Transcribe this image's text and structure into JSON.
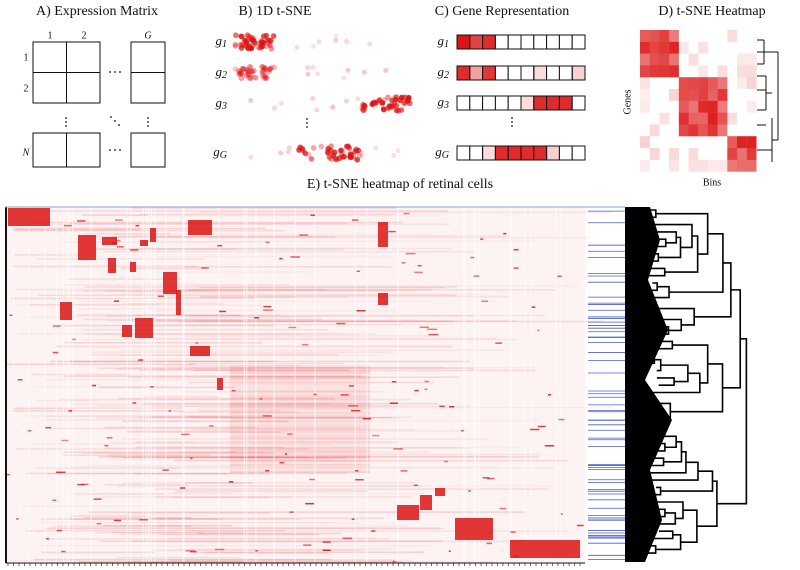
{
  "panel_a": {
    "title": "A) Expression Matrix",
    "col_labels": [
      "1",
      "2",
      "G"
    ],
    "row_labels": [
      "1",
      "2",
      "N"
    ]
  },
  "panel_b": {
    "title": "B) 1D t-SNE",
    "rows": [
      {
        "base": "g",
        "sub": "1"
      },
      {
        "base": "g",
        "sub": "2"
      },
      {
        "base": "g",
        "sub": "3"
      },
      {
        "base": "g",
        "sub": "G"
      }
    ]
  },
  "panel_c": {
    "title": "C) Gene Representation",
    "rows": [
      {
        "base": "g",
        "sub": "1"
      },
      {
        "base": "g",
        "sub": "2"
      },
      {
        "base": "g",
        "sub": "3"
      },
      {
        "base": "g",
        "sub": "G"
      }
    ]
  },
  "panel_d": {
    "title": "D) t-SNE Heatmap",
    "y_label": "Genes",
    "x_label": "Bins"
  },
  "panel_e": {
    "title": "E) t-SNE heatmap of retinal cells"
  }
}
